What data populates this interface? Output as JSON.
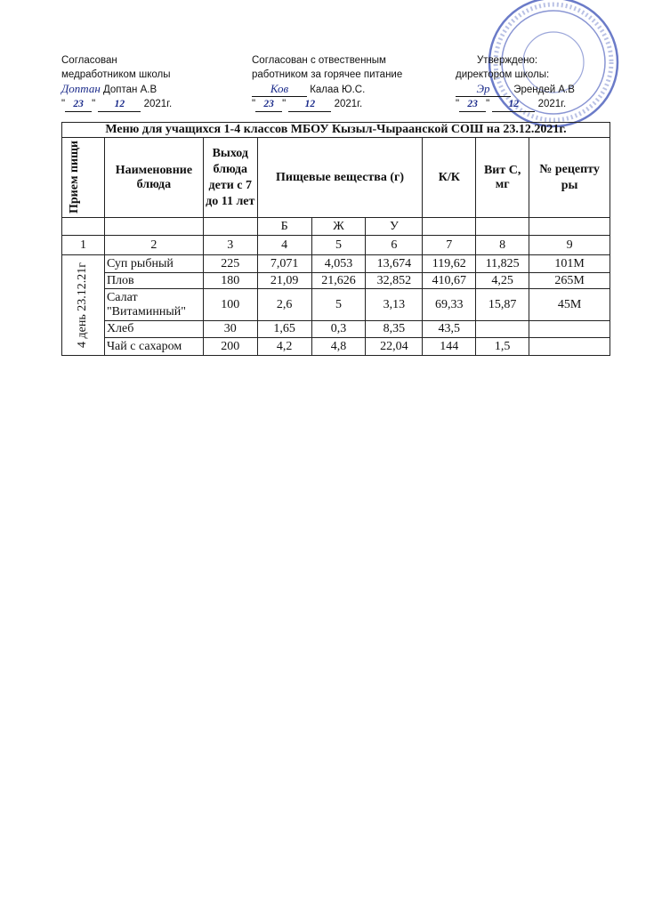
{
  "approvals": [
    {
      "line1": "Согласован",
      "line2": "медработником школы",
      "signature": "Доптан",
      "name": "Доптан А.В",
      "day": "23",
      "month": "12",
      "year": "2021г."
    },
    {
      "line1": "Согласован с отвественным",
      "line2": "работником за горячее питание",
      "signature": "Ков",
      "name": "Калаа Ю.С.",
      "day": "23",
      "month": "12",
      "year": "2021г."
    },
    {
      "line1": "Утверждено:",
      "line2": "директором школы:",
      "signature": "Эр",
      "name": "Эрендей А.В",
      "day": "23",
      "month": "12",
      "year": "2021г."
    }
  ],
  "table": {
    "title": "Меню для учащихся 1-4 классов МБОУ Кызыл-Чыраанской СОШ на 23.12.2021г.",
    "headers": {
      "meal": "Прием пищи",
      "dish": "Наименовние блюда",
      "portion": "Выход блюда дети с 7 до 11 лет",
      "nutrients": "Пищевые вещества (г)",
      "kcal": "К/К",
      "vitc": "Вит С, мг",
      "recipe": "№ рецепту ры"
    },
    "sub": {
      "b": "Б",
      "zh": "Ж",
      "u": "У"
    },
    "numbers": [
      "1",
      "2",
      "3",
      "4",
      "5",
      "6",
      "7",
      "8",
      "9"
    ],
    "day_label": "4 день 23.12.21г",
    "rows": [
      {
        "dish": "Суп рыбный",
        "portion": "225",
        "b": "7,071",
        "zh": "4,053",
        "u": "13,674",
        "kcal": "119,62",
        "vitc": "11,825",
        "recipe": "101М"
      },
      {
        "dish": "Плов",
        "portion": "180",
        "b": "21,09",
        "zh": "21,626",
        "u": "32,852",
        "kcal": "410,67",
        "vitc": "4,25",
        "recipe": "265М"
      },
      {
        "dish": "Салат \"Витаминный\"",
        "portion": "100",
        "b": "2,6",
        "zh": "5",
        "u": "3,13",
        "kcal": "69,33",
        "vitc": "15,87",
        "recipe": "45М"
      },
      {
        "dish": "Хлеб",
        "portion": "30",
        "b": "1,65",
        "zh": "0,3",
        "u": "8,35",
        "kcal": "43,5",
        "vitc": "",
        "recipe": ""
      },
      {
        "dish": "Чай с сахаром",
        "portion": "200",
        "b": "4,2",
        "zh": "4,8",
        "u": "22,04",
        "kcal": "144",
        "vitc": "1,5",
        "recipe": ""
      }
    ]
  },
  "colors": {
    "stamp": "#3a4fb5",
    "ink": "#1a2a8a"
  }
}
